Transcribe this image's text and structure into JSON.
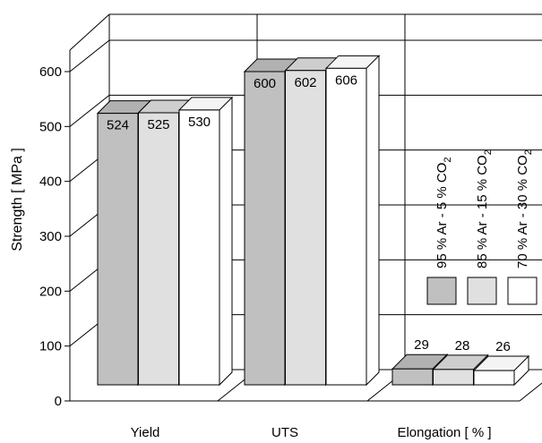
{
  "chart_data": {
    "type": "bar",
    "ylabel": "Strength [ MPa ]",
    "xlabel": "",
    "ylim": [
      0,
      600
    ],
    "yticks": [
      0,
      100,
      200,
      300,
      400,
      500,
      600
    ],
    "categories": [
      "Yield",
      "UTS",
      "Elongation [ % ]"
    ],
    "series": [
      {
        "name": "95 % Ar -  5 % CO",
        "subscript": "2",
        "color": "#c0c0c0",
        "values": [
          524,
          600,
          29
        ]
      },
      {
        "name": "85 % Ar - 15 % CO",
        "subscript": "2",
        "color": "#e0e0e0",
        "values": [
          525,
          602,
          28
        ]
      },
      {
        "name": "70 % Ar - 30 % CO",
        "subscript": "2",
        "color": "#ffffff",
        "values": [
          530,
          606,
          26
        ]
      }
    ],
    "legend_position": "right",
    "grid": true,
    "style": "3d"
  }
}
